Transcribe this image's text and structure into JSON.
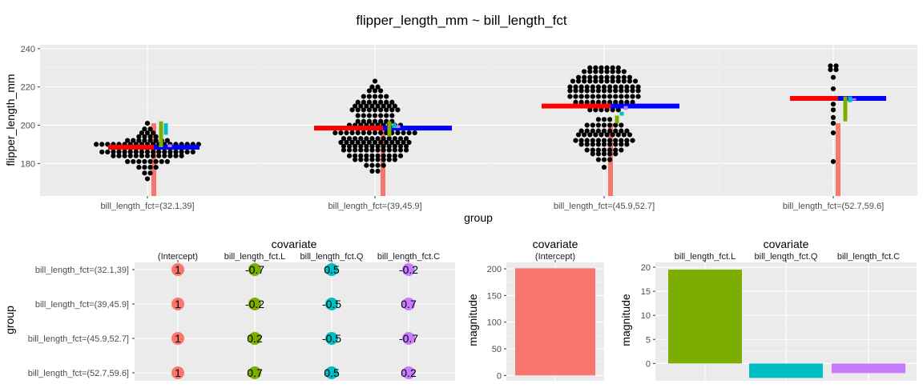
{
  "title": "flipper_length_mm ~ bill_length_fct",
  "chart_data": [
    {
      "type": "scatter",
      "subtype": "beeswarm",
      "xlabel": "group",
      "ylabel": "flipper_length_mm",
      "categories": [
        "bill_length_fct=(32.1,39]",
        "bill_length_fct=(39,45.9]",
        "bill_length_fct=(45.9,52.7]",
        "bill_length_fct=(52.7,59.6]"
      ],
      "ylim": [
        163,
        242
      ],
      "yticks": [
        180,
        200,
        220,
        240
      ],
      "group_means": [
        188.5,
        198.5,
        210,
        214
      ],
      "grand_mean": 201,
      "intercept_line_color": "#F8766D",
      "group_mean_colors": {
        "left": "#FF0000",
        "right": "#0000FF"
      },
      "effect_colors": {
        "L": "#7CAE00",
        "Q": "#00BFC4",
        "C": "#C77CFF"
      },
      "swarm": [
        {
          "category": "bill_length_fct=(32.1,39]",
          "rows": [
            {
              "y": 172,
              "n": 1
            },
            {
              "y": 175,
              "n": 2
            },
            {
              "y": 178,
              "n": 4
            },
            {
              "y": 181,
              "n": 8
            },
            {
              "y": 184,
              "n": 13
            },
            {
              "y": 186,
              "n": 17
            },
            {
              "y": 188,
              "n": 13
            },
            {
              "y": 190,
              "n": 19
            },
            {
              "y": 192,
              "n": 8
            },
            {
              "y": 194,
              "n": 4
            },
            {
              "y": 196,
              "n": 3
            },
            {
              "y": 198,
              "n": 2
            },
            {
              "y": 201,
              "n": 1
            }
          ]
        },
        {
          "category": "bill_length_fct=(39,45.9]",
          "rows": [
            {
              "y": 176,
              "n": 2
            },
            {
              "y": 179,
              "n": 4
            },
            {
              "y": 182,
              "n": 8
            },
            {
              "y": 184,
              "n": 10
            },
            {
              "y": 187,
              "n": 12
            },
            {
              "y": 189,
              "n": 12
            },
            {
              "y": 191,
              "n": 13
            },
            {
              "y": 193,
              "n": 12
            },
            {
              "y": 196,
              "n": 15
            },
            {
              "y": 198,
              "n": 9
            },
            {
              "y": 200,
              "n": 10
            },
            {
              "y": 202,
              "n": 7
            },
            {
              "y": 205,
              "n": 7
            },
            {
              "y": 208,
              "n": 9
            },
            {
              "y": 210,
              "n": 8
            },
            {
              "y": 212,
              "n": 7
            },
            {
              "y": 215,
              "n": 5
            },
            {
              "y": 218,
              "n": 3
            },
            {
              "y": 220,
              "n": 2
            },
            {
              "y": 223,
              "n": 1
            }
          ]
        },
        {
          "category": "bill_length_fct=(45.9,52.7]",
          "rows": [
            {
              "y": 178,
              "n": 1
            },
            {
              "y": 182,
              "n": 3
            },
            {
              "y": 185,
              "n": 5
            },
            {
              "y": 187,
              "n": 7
            },
            {
              "y": 190,
              "n": 9
            },
            {
              "y": 192,
              "n": 11
            },
            {
              "y": 195,
              "n": 10
            },
            {
              "y": 197,
              "n": 9
            },
            {
              "y": 200,
              "n": 7
            },
            {
              "y": 203,
              "n": 3
            },
            {
              "y": 208,
              "n": 6
            },
            {
              "y": 210,
              "n": 9
            },
            {
              "y": 212,
              "n": 11
            },
            {
              "y": 215,
              "n": 13
            },
            {
              "y": 218,
              "n": 13
            },
            {
              "y": 220,
              "n": 13
            },
            {
              "y": 223,
              "n": 12
            },
            {
              "y": 225,
              "n": 10
            },
            {
              "y": 228,
              "n": 8
            },
            {
              "y": 230,
              "n": 6
            }
          ]
        },
        {
          "category": "bill_length_fct=(52.7,59.6]",
          "rows": [
            {
              "y": 181,
              "n": 1
            },
            {
              "y": 196,
              "n": 1
            },
            {
              "y": 201,
              "n": 1
            },
            {
              "y": 204,
              "n": 1
            },
            {
              "y": 208,
              "n": 1
            },
            {
              "y": 211,
              "n": 1
            },
            {
              "y": 219,
              "n": 1
            },
            {
              "y": 225,
              "n": 1
            },
            {
              "y": 229,
              "n": 2
            },
            {
              "y": 231,
              "n": 2
            }
          ]
        }
      ]
    },
    {
      "type": "table",
      "title": "covariate",
      "ylabel": "group",
      "columns": [
        "(Intercept)",
        "bill_length_fct.L",
        "bill_length_fct.Q",
        "bill_length_fct.C"
      ],
      "rows": [
        "bill_length_fct=(32.1,39]",
        "bill_length_fct=(39,45.9]",
        "bill_length_fct=(45.9,52.7]",
        "bill_length_fct=(52.7,59.6]"
      ],
      "values": [
        [
          "1",
          "-0.7",
          "0.5",
          "-0.2"
        ],
        [
          "1",
          "-0.2",
          "-0.5",
          "0.7"
        ],
        [
          "1",
          "0.2",
          "-0.5",
          "-0.7"
        ],
        [
          "1",
          "0.7",
          "0.5",
          "0.2"
        ]
      ],
      "column_colors": [
        "#F8766D",
        "#7CAE00",
        "#00BFC4",
        "#C77CFF"
      ]
    },
    {
      "type": "bar",
      "title": "covariate",
      "ylabel": "magnitude",
      "categories": [
        "(Intercept)"
      ],
      "values": [
        201
      ],
      "ylim": [
        -10,
        212
      ],
      "yticks": [
        0,
        50,
        100,
        150,
        200
      ],
      "colors": [
        "#F8766D"
      ]
    },
    {
      "type": "bar",
      "title": "covariate",
      "ylabel": "magnitude",
      "categories": [
        "bill_length_fct.L",
        "bill_length_fct.Q",
        "bill_length_fct.C"
      ],
      "values": [
        19.5,
        -3,
        -2
      ],
      "ylim": [
        -3.6,
        21
      ],
      "yticks": [
        0,
        5,
        10,
        15,
        20
      ],
      "colors": [
        "#7CAE00",
        "#00BFC4",
        "#C77CFF"
      ]
    }
  ]
}
